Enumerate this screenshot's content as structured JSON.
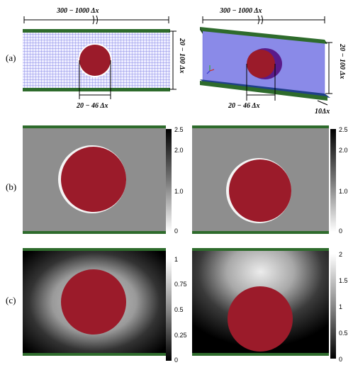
{
  "panel_labels": {
    "a": "(a)",
    "b": "(b)",
    "c": "(c)"
  },
  "dimensions": {
    "length": "300 − 1000 Δx",
    "height": "20 − 100 Δx",
    "diameter": "20 − 46 Δx",
    "width": "10Δx"
  },
  "colorbar_b": [
    "2.5",
    "2.0",
    "1.0",
    "0"
  ],
  "colorbar_c_left": [
    "1",
    "0.75",
    "0.5",
    "0.25",
    "0"
  ],
  "colorbar_c_right": [
    "2",
    "1.5",
    "1",
    "0.5",
    "0"
  ],
  "colors": {
    "plate": "#2e6b2c",
    "particle": "#9b1b2a",
    "fluid_lattice": "#b9b9f0",
    "fluid_3d": "#8a8ae8"
  }
}
